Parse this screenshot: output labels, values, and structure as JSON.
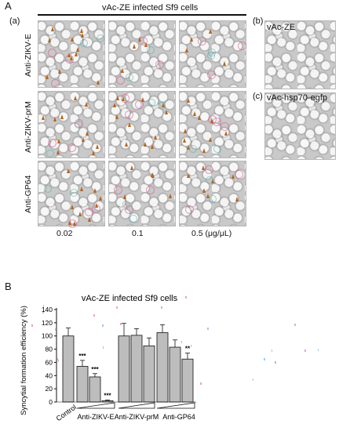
{
  "panelA": {
    "letter": "A",
    "title": "vAc-ZE infected Sf9 cells",
    "sub_a": "(a)",
    "row_labels": [
      "Anti-ZIKV-E",
      "Anti-ZIKV-prM",
      "Anti-GP64"
    ],
    "concentrations": [
      "0.02",
      "0.1",
      "0.5 (μg/μL)"
    ],
    "sub_b": "(b)",
    "b_label": "vAc-ZE",
    "sub_c": "(c)",
    "c_label": "vAc-hsp70-egfp"
  },
  "panelB": {
    "letter": "B",
    "ylabel": "Syncytial formation efficiency (%)"
  },
  "chart_data": {
    "type": "bar",
    "title": "vAc-ZE infected Sf9 cells",
    "ylabel": "Syncytial formation efficiency (%)",
    "xlabel": "",
    "ylim": [
      0,
      140
    ],
    "yticks": [
      "0",
      "20",
      "40",
      "60",
      "80",
      "100",
      "120",
      "140"
    ],
    "bars": [
      {
        "group": "Control",
        "value": 100,
        "error": 12,
        "sig": ""
      },
      {
        "group": "Anti-ZIKV-E",
        "value": 54,
        "error": 9,
        "sig": "***"
      },
      {
        "group": "Anti-ZIKV-E",
        "value": 38,
        "error": 5,
        "sig": "***"
      },
      {
        "group": "Anti-ZIKV-E",
        "value": 2,
        "error": 1,
        "sig": "***"
      },
      {
        "group": "Anti-ZIKV-prM",
        "value": 100,
        "error": 19,
        "sig": ""
      },
      {
        "group": "Anti-ZIKV-prM",
        "value": 101,
        "error": 10,
        "sig": ""
      },
      {
        "group": "Anti-ZIKV-prM",
        "value": 85,
        "error": 12,
        "sig": ""
      },
      {
        "group": "Anti-GP64",
        "value": 105,
        "error": 12,
        "sig": ""
      },
      {
        "group": "Anti-GP64",
        "value": 83,
        "error": 11,
        "sig": ""
      },
      {
        "group": "Anti-GP64",
        "value": 65,
        "error": 9,
        "sig": "**"
      }
    ],
    "group_labels": [
      "Control",
      "Anti-ZIKV-E",
      "Anti-ZIKV-prM",
      "Anti-GP64"
    ],
    "bar_color": "#bdbdbd"
  }
}
